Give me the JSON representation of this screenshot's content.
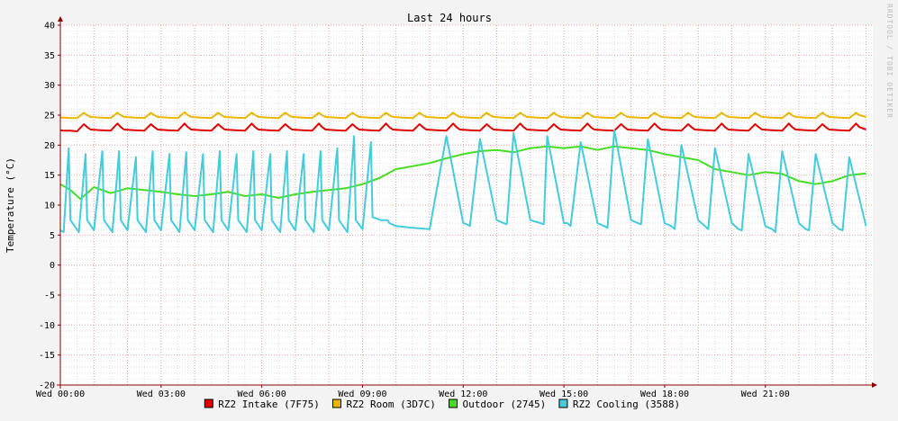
{
  "chart_data": {
    "type": "line",
    "title": "Last 24 hours",
    "ylabel": "Temperature (°C)",
    "xlabel": "",
    "watermark": "RRDTOOL / TOBI OETIKER",
    "xlim_hours": [
      0,
      24.2
    ],
    "ylim": [
      -20,
      40
    ],
    "y_ticks": [
      -20,
      -15,
      -10,
      -5,
      0,
      5,
      10,
      15,
      20,
      25,
      30,
      35,
      40
    ],
    "x_ticks": [
      {
        "hour": 0,
        "label": "Wed 00:00"
      },
      {
        "hour": 3,
        "label": "Wed 03:00"
      },
      {
        "hour": 6,
        "label": "Wed 06:00"
      },
      {
        "hour": 9,
        "label": "Wed 09:00"
      },
      {
        "hour": 12,
        "label": "Wed 12:00"
      },
      {
        "hour": 15,
        "label": "Wed 15:00"
      },
      {
        "hour": 18,
        "label": "Wed 18:00"
      },
      {
        "hour": 21,
        "label": "Wed 21:00"
      }
    ],
    "grid": true,
    "legend_position": "bottom",
    "background_color": "#f3f3f3",
    "plot_color": "#ffffff",
    "major_grid_color": "#e7a5a5",
    "minor_grid_color": "#dedede",
    "axis_color": "#8b0000",
    "series": [
      {
        "name": "RZ2 Intake (7F75)",
        "color": "#e00000",
        "x": [
          0,
          0.1,
          0.3,
          0.5,
          0.7,
          0.8,
          0.9,
          1.2,
          1.5,
          1.7,
          1.8,
          1.9,
          2.2,
          2.5,
          2.7,
          2.8,
          2.9,
          3.2,
          3.5,
          3.7,
          3.8,
          3.9,
          4.2,
          4.5,
          4.7,
          4.8,
          4.9,
          5.2,
          5.5,
          5.7,
          5.8,
          5.9,
          6.2,
          6.5,
          6.7,
          6.8,
          6.9,
          7.2,
          7.5,
          7.7,
          7.8,
          7.9,
          8.2,
          8.5,
          8.7,
          8.8,
          8.9,
          9.2,
          9.5,
          9.7,
          9.8,
          9.9,
          10.2,
          10.5,
          10.7,
          10.8,
          10.9,
          11.2,
          11.5,
          11.7,
          11.8,
          11.9,
          12.2,
          12.5,
          12.7,
          12.8,
          12.9,
          13.2,
          13.5,
          13.7,
          13.8,
          13.9,
          14.2,
          14.5,
          14.7,
          14.8,
          14.9,
          15.2,
          15.5,
          15.7,
          15.8,
          15.9,
          16.2,
          16.5,
          16.7,
          16.8,
          16.9,
          17.2,
          17.5,
          17.7,
          17.8,
          17.9,
          18.2,
          18.5,
          18.7,
          18.8,
          18.9,
          19.2,
          19.5,
          19.7,
          19.8,
          19.9,
          20.2,
          20.5,
          20.7,
          20.8,
          20.9,
          21.2,
          21.5,
          21.7,
          21.8,
          21.9,
          22.2,
          22.5,
          22.7,
          22.8,
          22.9,
          23.2,
          23.5,
          23.7,
          23.8,
          24.0
        ],
        "values": [
          22.5,
          22.4,
          22.4,
          22.3,
          23.5,
          23.0,
          22.6,
          22.5,
          22.4,
          23.6,
          23.0,
          22.6,
          22.5,
          22.4,
          23.5,
          23.0,
          22.6,
          22.5,
          22.4,
          23.6,
          23.0,
          22.6,
          22.5,
          22.4,
          23.5,
          23.0,
          22.6,
          22.5,
          22.4,
          23.6,
          23.0,
          22.6,
          22.5,
          22.4,
          23.5,
          23.0,
          22.6,
          22.5,
          22.4,
          23.6,
          23.0,
          22.6,
          22.5,
          22.4,
          23.5,
          23.0,
          22.6,
          22.5,
          22.4,
          23.6,
          23.0,
          22.6,
          22.5,
          22.4,
          23.5,
          23.0,
          22.6,
          22.5,
          22.4,
          23.6,
          23.0,
          22.6,
          22.5,
          22.4,
          23.5,
          23.0,
          22.6,
          22.5,
          22.4,
          23.6,
          23.0,
          22.6,
          22.5,
          22.4,
          23.5,
          23.0,
          22.6,
          22.5,
          22.4,
          23.6,
          23.0,
          22.6,
          22.5,
          22.4,
          23.5,
          23.0,
          22.6,
          22.5,
          22.4,
          23.6,
          23.0,
          22.6,
          22.5,
          22.4,
          23.5,
          23.0,
          22.6,
          22.5,
          22.4,
          23.6,
          23.0,
          22.6,
          22.5,
          22.4,
          23.5,
          23.0,
          22.6,
          22.5,
          22.4,
          23.6,
          23.0,
          22.6,
          22.5,
          22.4,
          23.5,
          23.0,
          22.6,
          22.5,
          22.4,
          23.6,
          23.0,
          22.6
        ]
      },
      {
        "name": "RZ2 Room (3D7C)",
        "color": "#e8b800",
        "x": [
          0,
          0.1,
          0.3,
          0.5,
          0.7,
          0.8,
          0.9,
          1.2,
          1.5,
          1.7,
          1.8,
          1.9,
          2.2,
          2.5,
          2.7,
          2.8,
          2.9,
          3.2,
          3.5,
          3.7,
          3.8,
          3.9,
          4.2,
          4.5,
          4.7,
          4.8,
          4.9,
          5.2,
          5.5,
          5.7,
          5.8,
          5.9,
          6.2,
          6.5,
          6.7,
          6.8,
          6.9,
          7.2,
          7.5,
          7.7,
          7.8,
          7.9,
          8.2,
          8.5,
          8.7,
          8.8,
          8.9,
          9.2,
          9.5,
          9.7,
          9.8,
          9.9,
          10.2,
          10.5,
          10.7,
          10.8,
          10.9,
          11.2,
          11.5,
          11.7,
          11.8,
          11.9,
          12.2,
          12.5,
          12.7,
          12.8,
          12.9,
          13.2,
          13.5,
          13.7,
          13.8,
          13.9,
          14.2,
          14.5,
          14.7,
          14.8,
          14.9,
          15.2,
          15.5,
          15.7,
          15.8,
          15.9,
          16.2,
          16.5,
          16.7,
          16.8,
          16.9,
          17.2,
          17.5,
          17.7,
          17.8,
          17.9,
          18.2,
          18.5,
          18.7,
          18.8,
          18.9,
          19.2,
          19.5,
          19.7,
          19.8,
          19.9,
          20.2,
          20.5,
          20.7,
          20.8,
          20.9,
          21.2,
          21.5,
          21.7,
          21.8,
          21.9,
          22.2,
          22.5,
          22.7,
          22.8,
          22.9,
          23.2,
          23.5,
          23.7,
          23.8,
          24.0
        ],
        "values": [
          24.6,
          24.6,
          24.5,
          24.5,
          25.4,
          25.0,
          24.7,
          24.6,
          24.5,
          25.4,
          25.0,
          24.7,
          24.6,
          24.5,
          25.4,
          25.0,
          24.7,
          24.6,
          24.5,
          25.5,
          25.0,
          24.7,
          24.6,
          24.5,
          25.4,
          25.0,
          24.7,
          24.6,
          24.5,
          25.4,
          25.0,
          24.7,
          24.6,
          24.5,
          25.4,
          25.0,
          24.7,
          24.6,
          24.5,
          25.4,
          25.0,
          24.7,
          24.6,
          24.5,
          25.4,
          25.0,
          24.7,
          24.6,
          24.5,
          25.4,
          25.0,
          24.7,
          24.6,
          24.5,
          25.4,
          25.0,
          24.7,
          24.6,
          24.5,
          25.4,
          25.0,
          24.7,
          24.6,
          24.5,
          25.4,
          25.0,
          24.7,
          24.6,
          24.5,
          25.4,
          25.0,
          24.7,
          24.6,
          24.5,
          25.4,
          25.0,
          24.7,
          24.6,
          24.5,
          25.4,
          25.0,
          24.7,
          24.6,
          24.5,
          25.4,
          25.0,
          24.7,
          24.6,
          24.5,
          25.4,
          25.0,
          24.7,
          24.6,
          24.5,
          25.4,
          25.0,
          24.7,
          24.6,
          24.5,
          25.4,
          25.0,
          24.7,
          24.6,
          24.5,
          25.4,
          25.0,
          24.7,
          24.6,
          24.5,
          25.4,
          25.0,
          24.7,
          24.6,
          24.5,
          25.4,
          25.0,
          24.7,
          24.6,
          24.5,
          25.4,
          25.0,
          24.7
        ]
      },
      {
        "name": "Outdoor (2745)",
        "color": "#44dd22",
        "x": [
          0,
          0.3,
          0.6,
          1.0,
          1.5,
          2.0,
          2.5,
          3.0,
          3.5,
          4.0,
          4.5,
          5.0,
          5.5,
          6.0,
          6.5,
          7.0,
          7.5,
          8.0,
          8.5,
          9.0,
          9.5,
          10.0,
          10.5,
          11.0,
          11.5,
          12.0,
          12.5,
          13.0,
          13.5,
          14.0,
          14.5,
          15.0,
          15.5,
          16.0,
          16.5,
          17.0,
          17.5,
          18.0,
          18.5,
          19.0,
          19.5,
          20.0,
          20.5,
          21.0,
          21.5,
          22.0,
          22.5,
          23.0,
          23.5,
          24.0
        ],
        "values": [
          13.5,
          12.5,
          11.0,
          13.0,
          12.0,
          12.8,
          12.5,
          12.2,
          11.8,
          11.5,
          11.8,
          12.2,
          11.5,
          11.8,
          11.2,
          11.8,
          12.2,
          12.5,
          12.8,
          13.5,
          14.5,
          16.0,
          16.5,
          17.0,
          17.8,
          18.5,
          19.0,
          19.2,
          18.8,
          19.5,
          19.8,
          19.5,
          19.8,
          19.2,
          19.8,
          19.5,
          19.2,
          18.5,
          18.0,
          17.5,
          16.0,
          15.5,
          15.0,
          15.5,
          15.2,
          14.0,
          13.5,
          14.0,
          15.0,
          15.3
        ]
      },
      {
        "name": "RZ2 Cooling (3588)",
        "color": "#44ccdd",
        "x": [
          0,
          0.1,
          0.25,
          0.3,
          0.55,
          0.75,
          0.8,
          1.0,
          1.25,
          1.3,
          1.55,
          1.75,
          1.8,
          2.0,
          2.25,
          2.3,
          2.55,
          2.75,
          2.8,
          3.0,
          3.25,
          3.3,
          3.55,
          3.75,
          3.8,
          4.0,
          4.25,
          4.3,
          4.55,
          4.75,
          4.8,
          5.0,
          5.25,
          5.3,
          5.55,
          5.75,
          5.8,
          6.0,
          6.25,
          6.3,
          6.55,
          6.75,
          6.8,
          7.0,
          7.25,
          7.3,
          7.55,
          7.75,
          7.8,
          8.0,
          8.25,
          8.3,
          8.55,
          8.75,
          8.8,
          9.0,
          9.25,
          9.3,
          9.55,
          9.75,
          9.8,
          10.0,
          10.5,
          11.0,
          11.5,
          12.0,
          12.1,
          12.2,
          12.5,
          13.0,
          13.2,
          13.3,
          13.5,
          14.0,
          14.3,
          14.4,
          14.5,
          15.0,
          15.1,
          15.2,
          15.5,
          16.0,
          16.2,
          16.3,
          16.5,
          17.0,
          17.2,
          17.3,
          17.5,
          18.0,
          18.2,
          18.3,
          18.5,
          19.0,
          19.2,
          19.3,
          19.5,
          20.0,
          20.2,
          20.3,
          20.5,
          21.0,
          21.2,
          21.3,
          21.5,
          22.0,
          22.2,
          22.3,
          22.5,
          23.0,
          23.2,
          23.3,
          23.5,
          24.0
        ],
        "values": [
          5.8,
          5.5,
          19.5,
          7.5,
          5.5,
          18.5,
          7.5,
          5.8,
          19.0,
          7.5,
          5.5,
          19.0,
          7.5,
          5.8,
          18.0,
          7.5,
          5.5,
          19.0,
          7.5,
          5.8,
          18.5,
          7.5,
          5.5,
          18.8,
          7.5,
          5.8,
          18.5,
          7.5,
          5.5,
          19.0,
          7.5,
          5.8,
          18.5,
          7.5,
          5.5,
          19.0,
          7.5,
          5.8,
          18.5,
          7.5,
          5.5,
          19.0,
          7.5,
          5.8,
          18.5,
          7.5,
          5.5,
          19.0,
          7.5,
          5.8,
          19.5,
          7.5,
          5.5,
          21.5,
          7.5,
          6.0,
          20.5,
          8.0,
          7.5,
          7.5,
          7.0,
          6.5,
          6.2,
          6.0,
          21.5,
          7.0,
          6.8,
          6.5,
          21.0,
          7.5,
          7.0,
          6.8,
          22.0,
          7.5,
          7.0,
          6.8,
          21.5,
          7.0,
          7.0,
          6.5,
          20.5,
          7.0,
          6.5,
          6.2,
          22.5,
          7.5,
          7.0,
          6.8,
          21.0,
          7.0,
          6.5,
          6.0,
          20.0,
          7.5,
          6.5,
          6.0,
          19.5,
          7.0,
          6.0,
          5.8,
          18.5,
          6.5,
          6.0,
          5.5,
          19.0,
          7.0,
          6.0,
          5.8,
          18.5,
          7.0,
          6.0,
          5.8,
          18.0,
          6.5
        ]
      }
    ]
  }
}
